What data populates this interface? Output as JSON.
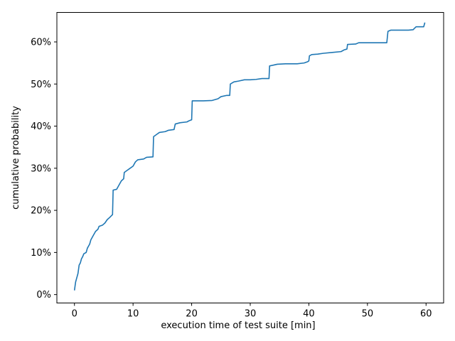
{
  "chart_data": {
    "type": "line",
    "title": "",
    "xlabel": "execution time of test suite [min]",
    "ylabel": "cumulative probability",
    "xlim": [
      -3,
      63
    ],
    "ylim": [
      -0.02,
      0.67
    ],
    "xticks": [
      0,
      10,
      20,
      30,
      40,
      50,
      60
    ],
    "yticks": [
      0,
      0.1,
      0.2,
      0.3,
      0.4,
      0.5,
      0.6
    ],
    "ytick_format": "percent",
    "grid": false,
    "legend": "none",
    "series": [
      {
        "color": "#1f77b4",
        "points": [
          [
            0.0,
            0.01
          ],
          [
            0.1,
            0.02
          ],
          [
            0.2,
            0.03
          ],
          [
            0.4,
            0.04
          ],
          [
            0.6,
            0.05
          ],
          [
            0.8,
            0.07
          ],
          [
            1.0,
            0.075
          ],
          [
            1.2,
            0.085
          ],
          [
            1.4,
            0.09
          ],
          [
            1.6,
            0.097
          ],
          [
            2.0,
            0.1
          ],
          [
            2.2,
            0.11
          ],
          [
            2.6,
            0.12
          ],
          [
            2.8,
            0.13
          ],
          [
            3.2,
            0.14
          ],
          [
            3.6,
            0.15
          ],
          [
            4.0,
            0.155
          ],
          [
            4.2,
            0.162
          ],
          [
            4.8,
            0.165
          ],
          [
            5.2,
            0.17
          ],
          [
            5.6,
            0.178
          ],
          [
            6.0,
            0.183
          ],
          [
            6.5,
            0.19
          ],
          [
            6.6,
            0.248
          ],
          [
            7.2,
            0.25
          ],
          [
            7.6,
            0.26
          ],
          [
            8.0,
            0.27
          ],
          [
            8.4,
            0.275
          ],
          [
            8.5,
            0.29
          ],
          [
            9.0,
            0.295
          ],
          [
            9.5,
            0.3
          ],
          [
            10.0,
            0.305
          ],
          [
            10.4,
            0.315
          ],
          [
            10.8,
            0.32
          ],
          [
            11.8,
            0.322
          ],
          [
            12.3,
            0.326
          ],
          [
            13.4,
            0.327
          ],
          [
            13.5,
            0.375
          ],
          [
            14.0,
            0.38
          ],
          [
            14.5,
            0.385
          ],
          [
            15.5,
            0.387
          ],
          [
            16.0,
            0.39
          ],
          [
            17.0,
            0.392
          ],
          [
            17.2,
            0.405
          ],
          [
            18.0,
            0.408
          ],
          [
            19.2,
            0.41
          ],
          [
            19.6,
            0.413
          ],
          [
            20.0,
            0.415
          ],
          [
            20.1,
            0.46
          ],
          [
            22.0,
            0.46
          ],
          [
            23.5,
            0.461
          ],
          [
            24.5,
            0.465
          ],
          [
            25.0,
            0.47
          ],
          [
            26.0,
            0.473
          ],
          [
            26.5,
            0.473
          ],
          [
            26.6,
            0.5
          ],
          [
            27.2,
            0.505
          ],
          [
            28.0,
            0.507
          ],
          [
            29.0,
            0.51
          ],
          [
            30.0,
            0.51
          ],
          [
            31.0,
            0.511
          ],
          [
            32.0,
            0.513
          ],
          [
            33.2,
            0.513
          ],
          [
            33.3,
            0.543
          ],
          [
            34.0,
            0.545
          ],
          [
            34.6,
            0.547
          ],
          [
            36.0,
            0.548
          ],
          [
            38.0,
            0.548
          ],
          [
            39.2,
            0.55
          ],
          [
            39.8,
            0.553
          ],
          [
            40.0,
            0.555
          ],
          [
            40.1,
            0.567
          ],
          [
            40.5,
            0.57
          ],
          [
            41.5,
            0.571
          ],
          [
            42.5,
            0.573
          ],
          [
            44.0,
            0.575
          ],
          [
            45.5,
            0.577
          ],
          [
            46.0,
            0.581
          ],
          [
            46.5,
            0.583
          ],
          [
            46.6,
            0.594
          ],
          [
            48.0,
            0.595
          ],
          [
            48.5,
            0.598
          ],
          [
            50.0,
            0.598
          ],
          [
            53.3,
            0.598
          ],
          [
            53.5,
            0.625
          ],
          [
            54.0,
            0.628
          ],
          [
            57.0,
            0.628
          ],
          [
            57.8,
            0.629
          ],
          [
            58.0,
            0.632
          ],
          [
            58.3,
            0.636
          ],
          [
            59.6,
            0.636
          ],
          [
            59.8,
            0.646
          ]
        ]
      }
    ]
  }
}
